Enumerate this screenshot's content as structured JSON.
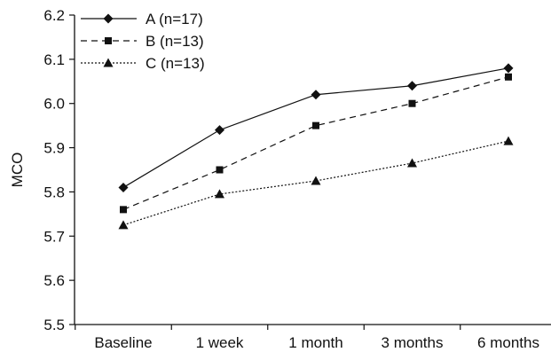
{
  "chart_data": {
    "type": "line",
    "title": "",
    "xlabel": "",
    "ylabel": "MCO",
    "categories": [
      "Baseline",
      "1 week",
      "1 month",
      "3 months",
      "6 months"
    ],
    "ylim": [
      5.5,
      6.2
    ],
    "yticks": [
      "5.5",
      "5.6",
      "5.7",
      "5.8",
      "5.9",
      "6.0",
      "6.1",
      "6.2"
    ],
    "grid": false,
    "legend_position": "top-left",
    "series": [
      {
        "name": "A (n=17)",
        "marker": "diamond",
        "line": "solid",
        "values": [
          5.81,
          5.94,
          6.02,
          6.04,
          6.08
        ]
      },
      {
        "name": "B (n=13)",
        "marker": "square",
        "line": "dashed",
        "values": [
          5.76,
          5.85,
          5.95,
          6.0,
          6.06
        ]
      },
      {
        "name": "C (n=13)",
        "marker": "triangle",
        "line": "dotted",
        "values": [
          5.725,
          5.795,
          5.825,
          5.865,
          5.915
        ]
      }
    ]
  }
}
